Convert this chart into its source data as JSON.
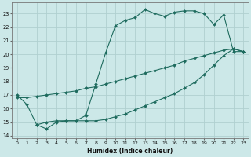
{
  "xlabel": "Humidex (Indice chaleur)",
  "bg_color": "#cce8e8",
  "line_color": "#1e6b5e",
  "grid_color": "#b0d0d0",
  "xlim": [
    -0.5,
    23.5
  ],
  "ylim": [
    13.8,
    23.8
  ],
  "yticks": [
    14,
    15,
    16,
    17,
    18,
    19,
    20,
    21,
    22,
    23
  ],
  "xticks": [
    0,
    1,
    2,
    3,
    4,
    5,
    6,
    7,
    8,
    9,
    10,
    11,
    12,
    13,
    14,
    15,
    16,
    17,
    18,
    19,
    20,
    21,
    22,
    23
  ],
  "line1_x": [
    0,
    1,
    2,
    3,
    4,
    5,
    6,
    7,
    8,
    9,
    10,
    11,
    12,
    13,
    14,
    15,
    16,
    17,
    18,
    19,
    20,
    21,
    22,
    23
  ],
  "line1_y": [
    17.0,
    16.3,
    14.8,
    15.0,
    15.1,
    15.1,
    15.1,
    15.5,
    17.8,
    20.1,
    22.1,
    22.5,
    22.7,
    23.3,
    23.0,
    22.8,
    23.1,
    23.2,
    23.2,
    23.0,
    22.2,
    22.9,
    20.2,
    20.2
  ],
  "line2_x": [
    0,
    1,
    2,
    3,
    4,
    5,
    6,
    7,
    8,
    9,
    10,
    11,
    12,
    13,
    14,
    15,
    16,
    17,
    18,
    19,
    20,
    21,
    22,
    23
  ],
  "line2_y": [
    16.8,
    16.8,
    16.9,
    17.0,
    17.1,
    17.2,
    17.3,
    17.5,
    17.6,
    17.8,
    18.0,
    18.2,
    18.4,
    18.6,
    18.8,
    19.0,
    19.2,
    19.5,
    19.7,
    19.9,
    20.1,
    20.3,
    20.4,
    20.2
  ],
  "line3_x": [
    2,
    3,
    4,
    5,
    6,
    7,
    8,
    9,
    10,
    11,
    12,
    13,
    14,
    15,
    16,
    17,
    18,
    19,
    20,
    21,
    22,
    23
  ],
  "line3_y": [
    14.8,
    14.5,
    15.0,
    15.1,
    15.1,
    15.1,
    15.1,
    15.2,
    15.4,
    15.6,
    15.9,
    16.2,
    16.5,
    16.8,
    17.1,
    17.5,
    17.9,
    18.5,
    19.2,
    19.9,
    20.4,
    20.2
  ]
}
